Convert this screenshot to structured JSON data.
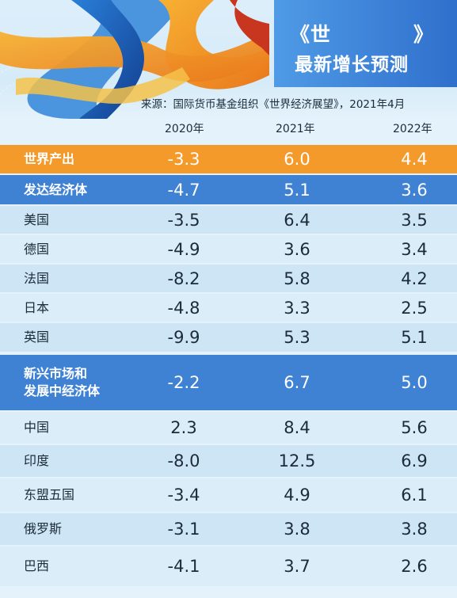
{
  "header": {
    "title_line_1": "《世　　　　》",
    "title_line_2": "最新增长预测",
    "source": "来源：国际货币基金组织《世界经济展望》，2021年4月"
  },
  "chart_data": {
    "type": "table",
    "columns": [
      "2020年",
      "2021年",
      "2022年"
    ],
    "rows": [
      {
        "label": "世界产出",
        "kind": "world",
        "values": [
          "-3.3",
          "6.0",
          "4.4"
        ]
      },
      {
        "label": "发达经济体",
        "kind": "group",
        "values": [
          "-4.7",
          "5.1",
          "3.6"
        ]
      },
      {
        "label": "美国",
        "kind": "item",
        "values": [
          "-3.5",
          "6.4",
          "3.5"
        ]
      },
      {
        "label": "德国",
        "kind": "item",
        "values": [
          "-4.9",
          "3.6",
          "3.4"
        ]
      },
      {
        "label": "法国",
        "kind": "item",
        "values": [
          "-8.2",
          "5.8",
          "4.2"
        ]
      },
      {
        "label": "日本",
        "kind": "item",
        "values": [
          "-4.8",
          "3.3",
          "2.5"
        ]
      },
      {
        "label": "英国",
        "kind": "item",
        "values": [
          "-9.9",
          "5.3",
          "5.1"
        ]
      },
      {
        "label": "新兴市场和\n发展中经济体",
        "kind": "group",
        "values": [
          "-2.2",
          "6.7",
          "5.0"
        ]
      },
      {
        "label": "中国",
        "kind": "item",
        "values": [
          "2.3",
          "8.4",
          "5.6"
        ]
      },
      {
        "label": "印度",
        "kind": "item",
        "values": [
          "-8.0",
          "12.5",
          "6.9"
        ]
      },
      {
        "label": "东盟五国",
        "kind": "item",
        "values": [
          "-3.4",
          "4.9",
          "6.1"
        ]
      },
      {
        "label": "俄罗斯",
        "kind": "item",
        "values": [
          "-3.1",
          "3.8",
          "3.8"
        ]
      },
      {
        "label": "巴西",
        "kind": "item",
        "values": [
          "-4.1",
          "3.7",
          "2.6"
        ]
      }
    ]
  },
  "colors": {
    "world_row": "#f39a2b",
    "group_row": "#3f82d4",
    "item_row": "#cde5f5",
    "title_panel": "#3b82dc"
  }
}
